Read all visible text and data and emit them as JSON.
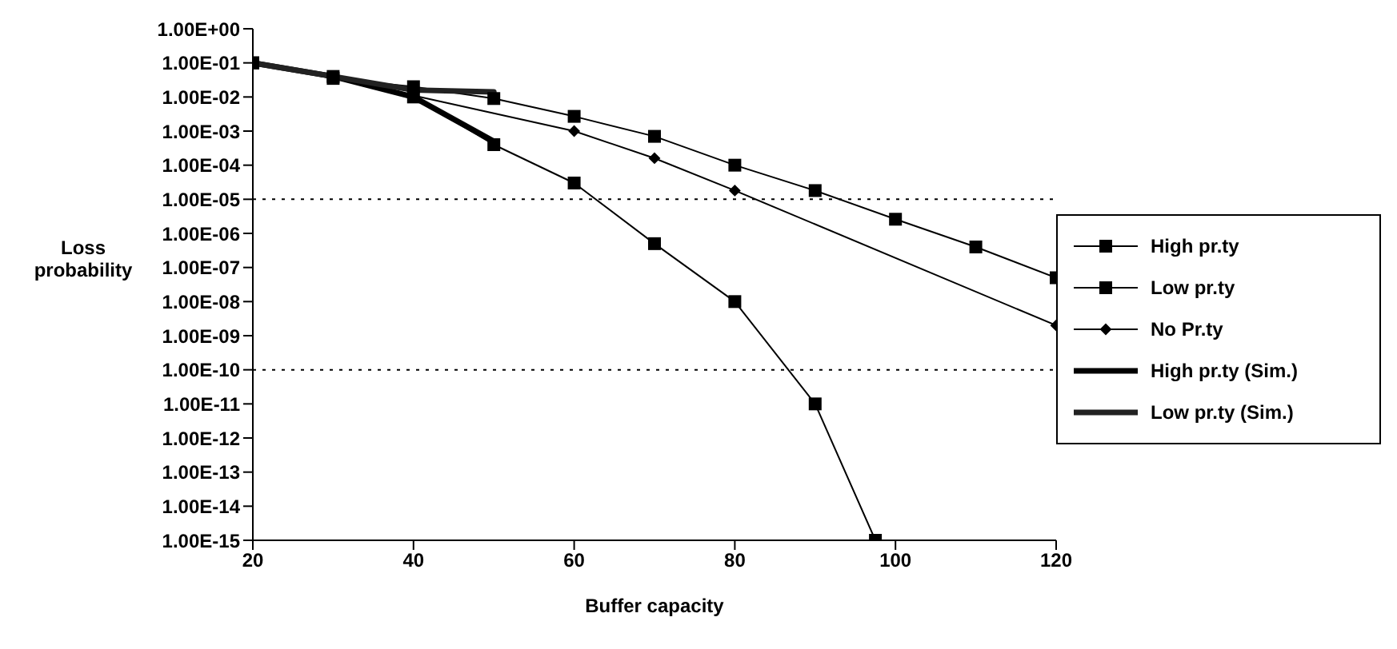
{
  "chart_data": {
    "type": "line",
    "xlabel": "Buffer capacity",
    "ylabel": "Loss probability",
    "log": "y",
    "xlim": [
      20,
      120
    ],
    "xticks": [
      20,
      40,
      60,
      80,
      100,
      120
    ],
    "ylim": [
      1e-15,
      1
    ],
    "yticks": [
      {
        "value": 1,
        "label": "1.00E+00"
      },
      {
        "value": 0.1,
        "label": "1.00E-01"
      },
      {
        "value": 0.01,
        "label": "1.00E-02"
      },
      {
        "value": 0.001,
        "label": "1.00E-03"
      },
      {
        "value": 0.0001,
        "label": "1.00E-04"
      },
      {
        "value": 1e-05,
        "label": "1.00E-05"
      },
      {
        "value": 1e-06,
        "label": "1.00E-06"
      },
      {
        "value": 1e-07,
        "label": "1.00E-07"
      },
      {
        "value": 1e-08,
        "label": "1.00E-08"
      },
      {
        "value": 1e-09,
        "label": "1.00E-09"
      },
      {
        "value": 1e-10,
        "label": "1.00E-10"
      },
      {
        "value": 1e-11,
        "label": "1.00E-11"
      },
      {
        "value": 1e-12,
        "label": "1.00E-12"
      },
      {
        "value": 1e-13,
        "label": "1.00E-13"
      },
      {
        "value": 1e-14,
        "label": "1.00E-14"
      },
      {
        "value": 1e-15,
        "label": "1.00E-15"
      }
    ],
    "grid": false,
    "legend": "right",
    "ref_lines": [
      {
        "axis": "y",
        "value": 1e-05,
        "line_style": "dotted",
        "color": "#000000"
      },
      {
        "axis": "y",
        "value": 1e-10,
        "line_style": "dotted",
        "color": "#000000"
      }
    ],
    "series": [
      {
        "name": "High pr.ty",
        "color": "#000000",
        "marker": "square",
        "x": [
          20,
          30,
          40,
          50,
          60,
          70,
          80,
          90,
          97.5
        ],
        "values": [
          0.1,
          0.04,
          0.01,
          0.0004,
          3e-05,
          5e-07,
          1e-08,
          1e-11,
          1e-15
        ]
      },
      {
        "name": "Low pr.ty",
        "color": "#000000",
        "marker": "square",
        "x": [
          20,
          30,
          40,
          50,
          60,
          70,
          80,
          90,
          100,
          110,
          120
        ],
        "values": [
          0.1,
          0.035,
          0.02,
          0.009,
          0.0027,
          0.0007,
          0.0001,
          1.8e-05,
          2.6e-06,
          4e-07,
          5e-08
        ]
      },
      {
        "name": "No Pr.ty",
        "color": "#000000",
        "marker": "diamond",
        "x": [
          20,
          30,
          40,
          60,
          70,
          80,
          120
        ],
        "values": [
          0.1,
          0.035,
          0.011,
          0.001,
          0.00016,
          1.8e-05,
          2e-09
        ]
      },
      {
        "name": "High pr.ty (Sim.)",
        "color": "#000000",
        "marker": "none",
        "x": [
          20,
          30,
          40,
          50
        ],
        "values": [
          0.1,
          0.04,
          0.01,
          0.0005
        ]
      },
      {
        "name": "Low pr.ty (Sim.)",
        "color": "#222222",
        "marker": "none",
        "x": [
          20,
          30,
          40,
          50
        ],
        "values": [
          0.1,
          0.04,
          0.016,
          0.014
        ]
      }
    ]
  }
}
